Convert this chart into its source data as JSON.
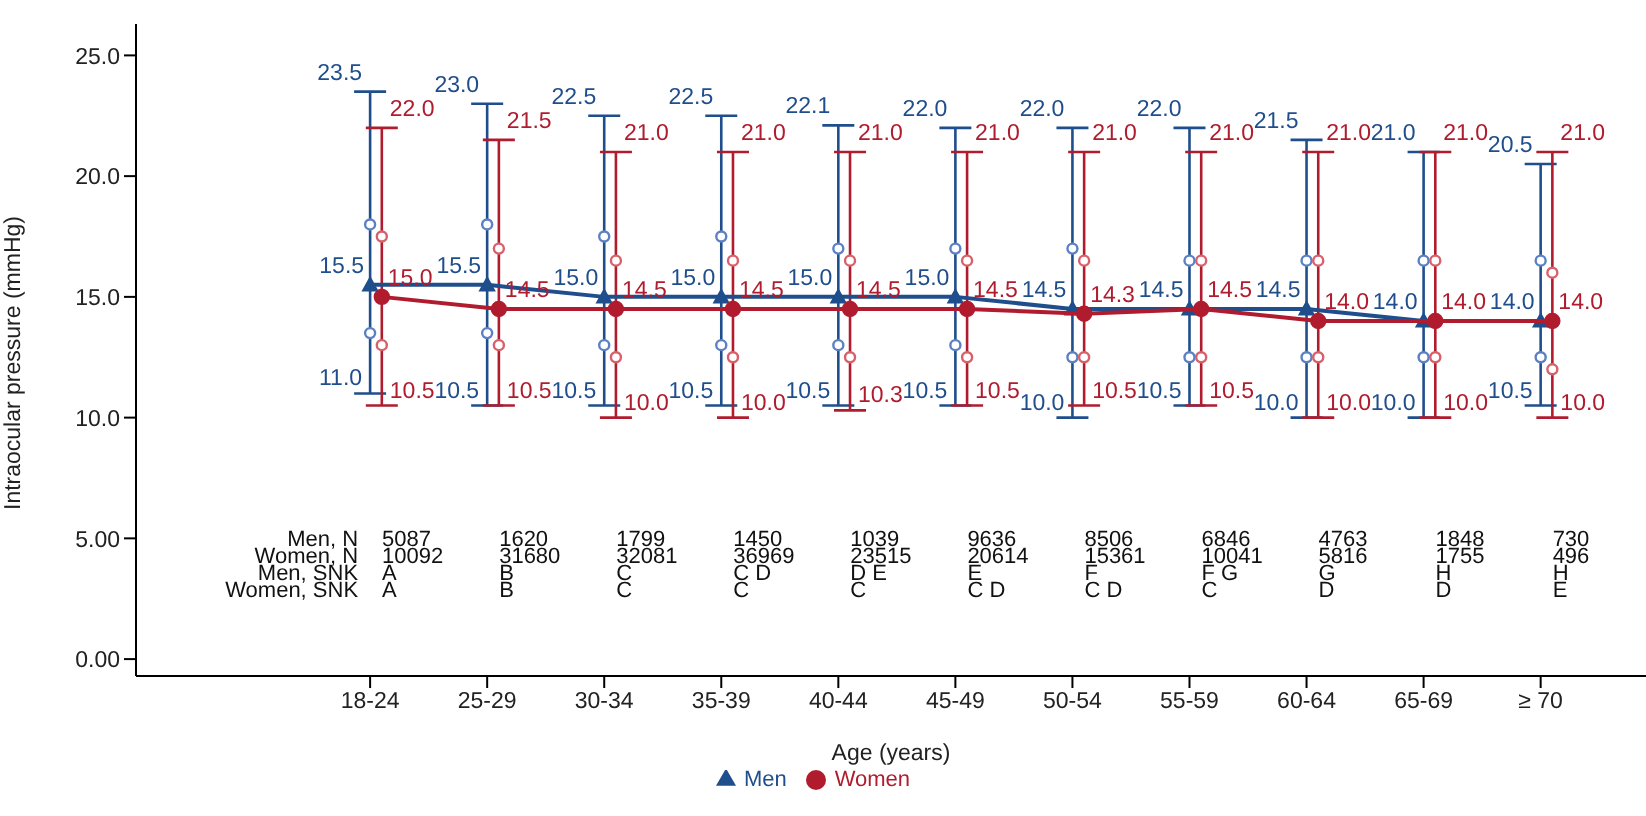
{
  "chart_data": {
    "type": "line",
    "xlabel": "Age (years)",
    "ylabel": "Intraocular pressure (mmHg)",
    "categories": [
      "18-24",
      "25-29",
      "30-34",
      "35-39",
      "40-44",
      "45-49",
      "50-54",
      "55-59",
      "60-64",
      "65-69",
      "≥ 70"
    ],
    "ylim": [
      -0.7,
      26.3
    ],
    "yticks": [
      {
        "value": 0,
        "label": "0.00"
      },
      {
        "value": 5,
        "label": "5.00"
      },
      {
        "value": 10,
        "label": "10.0"
      },
      {
        "value": 15,
        "label": "15.0"
      },
      {
        "value": 20,
        "label": "20.0"
      },
      {
        "value": 25,
        "label": "25.0"
      }
    ],
    "legend": "bottom",
    "line_style": "solid",
    "series": [
      {
        "name": "Men",
        "color": "#1f4e8c",
        "marker": "triangle",
        "values": [
          15.5,
          15.5,
          15.0,
          15.0,
          15.0,
          15.0,
          14.5,
          14.5,
          14.5,
          14.0,
          14.0
        ],
        "value_labels": [
          "15.5",
          "15.5",
          "15.0",
          "15.0",
          "15.0",
          "15.0",
          "14.5",
          "14.5",
          "14.5",
          "14.0",
          "14.0"
        ],
        "errors": [
          [
            11.0,
            23.5
          ],
          [
            10.5,
            23.0
          ],
          [
            10.5,
            22.5
          ],
          [
            10.5,
            22.5
          ],
          [
            10.5,
            22.1
          ],
          [
            10.5,
            22.0
          ],
          [
            10.0,
            22.0
          ],
          [
            10.5,
            22.0
          ],
          [
            10.0,
            21.5
          ],
          [
            10.0,
            21.0
          ],
          [
            10.5,
            20.5
          ]
        ]
      },
      {
        "name": "Women",
        "color": "#b01c2e",
        "marker": "circle",
        "values": [
          15.0,
          14.5,
          14.5,
          14.5,
          14.5,
          14.5,
          14.3,
          14.5,
          14.0,
          14.0,
          14.0
        ],
        "value_labels": [
          "15.0",
          "14.5",
          "14.5",
          "14.5",
          "14.5",
          "14.5",
          "14.3",
          "14.5",
          "14.0",
          "14.0",
          "14.0"
        ],
        "errors": [
          [
            10.5,
            22.0
          ],
          [
            10.5,
            21.5
          ],
          [
            10.0,
            21.0
          ],
          [
            10.0,
            21.0
          ],
          [
            10.3,
            21.0
          ],
          [
            10.5,
            21.0
          ],
          [
            10.5,
            21.0
          ],
          [
            10.5,
            21.0
          ],
          [
            10.0,
            21.0
          ],
          [
            10.0,
            21.0
          ],
          [
            10.0,
            21.0
          ]
        ]
      },
      {
        "type": "scatter",
        "color": "#5b80c4",
        "marker": "circle",
        "x": [
          "18-24",
          "18-24",
          "25-29",
          "25-29",
          "30-34",
          "30-34",
          "35-39",
          "35-39",
          "40-44",
          "40-44",
          "45-49",
          "45-49",
          "50-54",
          "50-54",
          "55-59",
          "55-59",
          "60-64",
          "60-64",
          "65-69",
          "65-69",
          "≥ 70",
          "≥ 70"
        ],
        "values": [
          18.0,
          13.5,
          18.0,
          13.5,
          17.5,
          13.0,
          17.5,
          13.0,
          17.0,
          13.0,
          17.0,
          13.0,
          17.0,
          12.5,
          16.5,
          12.5,
          16.5,
          12.5,
          16.5,
          12.5,
          16.5,
          12.5
        ]
      },
      {
        "type": "scatter",
        "color": "#d8606a",
        "marker": "circle",
        "x": [
          "18-24",
          "18-24",
          "25-29",
          "25-29",
          "30-34",
          "30-34",
          "35-39",
          "35-39",
          "40-44",
          "40-44",
          "45-49",
          "45-49",
          "50-54",
          "50-54",
          "55-59",
          "55-59",
          "60-64",
          "60-64",
          "65-69",
          "65-69",
          "≥ 70",
          "≥ 70"
        ],
        "values": [
          17.5,
          13.0,
          17.0,
          13.0,
          16.5,
          12.5,
          16.5,
          12.5,
          16.5,
          12.5,
          16.5,
          12.5,
          16.5,
          12.5,
          16.5,
          12.5,
          16.5,
          12.5,
          16.5,
          12.5,
          16.0,
          12.0
        ]
      }
    ],
    "annotations": [
      {
        "text": "23.5",
        "x": "18-24",
        "y": 23.5
      },
      {
        "text": "23.0",
        "x": "25-29",
        "y": 23.0
      },
      {
        "text": "22.5",
        "x": "30-34",
        "y": 22.5
      },
      {
        "text": "22.5",
        "x": "35-39",
        "y": 22.5
      },
      {
        "text": "22.1",
        "x": "40-44",
        "y": 22.1
      },
      {
        "text": "22.0",
        "x": "45-49",
        "y": 22.0
      },
      {
        "text": "22.0",
        "x": "50-54",
        "y": 22.0
      },
      {
        "text": "22.0",
        "x": "55-59",
        "y": 22.0
      },
      {
        "text": "21.5",
        "x": "60-64",
        "y": 21.5
      },
      {
        "text": "21.0",
        "x": "65-69",
        "y": 21.0
      },
      {
        "text": "20.5",
        "x": "≥ 70",
        "y": 20.5
      },
      {
        "text": "11.0",
        "x": "18-24",
        "y": 11.0
      },
      {
        "text": "10.5",
        "x": "25-29",
        "y": 10.5
      },
      {
        "text": "10.5",
        "x": "30-34",
        "y": 10.5
      },
      {
        "text": "10.5",
        "x": "35-39",
        "y": 10.5
      },
      {
        "text": "10.5",
        "x": "40-44",
        "y": 10.5
      },
      {
        "text": "10.5",
        "x": "45-49",
        "y": 10.5
      },
      {
        "text": "10.0",
        "x": "50-54",
        "y": 10.0
      },
      {
        "text": "10.5",
        "x": "55-59",
        "y": 10.5
      },
      {
        "text": "10.0",
        "x": "60-64",
        "y": 10.0
      },
      {
        "text": "10.0",
        "x": "65-69",
        "y": 10.0
      },
      {
        "text": "10.5",
        "x": "≥ 70",
        "y": 10.5
      },
      {
        "text": "22.0",
        "x": "18-24",
        "y": 22.0
      },
      {
        "text": "21.5",
        "x": "25-29",
        "y": 21.5
      },
      {
        "text": "21.0",
        "x": "30-34",
        "y": 21.0
      },
      {
        "text": "21.0",
        "x": "35-39",
        "y": 21.0
      },
      {
        "text": "21.0",
        "x": "40-44",
        "y": 21.0
      },
      {
        "text": "21.0",
        "x": "45-49",
        "y": 21.0
      },
      {
        "text": "21.0",
        "x": "50-54",
        "y": 21.0
      },
      {
        "text": "21.0",
        "x": "55-59",
        "y": 21.0
      },
      {
        "text": "21.0",
        "x": "60-64",
        "y": 21.0
      },
      {
        "text": "21.0",
        "x": "65-69",
        "y": 21.0
      },
      {
        "text": "21.0",
        "x": "≥ 70",
        "y": 21.0
      },
      {
        "text": "10.5",
        "x": "18-24",
        "y": 10.5
      },
      {
        "text": "10.5",
        "x": "25-29",
        "y": 10.5
      },
      {
        "text": "10.0",
        "x": "30-34",
        "y": 10.0
      },
      {
        "text": "10.0",
        "x": "35-39",
        "y": 10.0
      },
      {
        "text": "10.3",
        "x": "40-44",
        "y": 10.3
      },
      {
        "text": "10.5",
        "x": "45-49",
        "y": 10.5
      },
      {
        "text": "10.5",
        "x": "50-54",
        "y": 10.5
      },
      {
        "text": "10.5",
        "x": "55-59",
        "y": 10.5
      },
      {
        "text": "10.0",
        "x": "60-64",
        "y": 10.0
      },
      {
        "text": "10.0",
        "x": "65-69",
        "y": 10.0
      },
      {
        "text": "10.0",
        "x": "≥ 70",
        "y": 10.0
      },
      "Men, N",
      "Women, N",
      "Men, SNK",
      "Women, SNK",
      "5087",
      "1620",
      "1799",
      "1450",
      "1039",
      "9636",
      "8506",
      "6846",
      "4763",
      "1848",
      "730",
      "10092",
      "31680",
      "32081",
      "36969",
      "23515",
      "20614",
      "15361",
      "10041",
      "5816",
      "1755",
      "496",
      "A",
      "B",
      "C",
      "C D",
      "D E",
      "E",
      "F",
      "F G",
      "G",
      "H",
      "H",
      "A",
      "B",
      "C",
      "C",
      "C",
      "C D",
      "C D",
      "C",
      "D",
      "D",
      "E"
    ]
  }
}
